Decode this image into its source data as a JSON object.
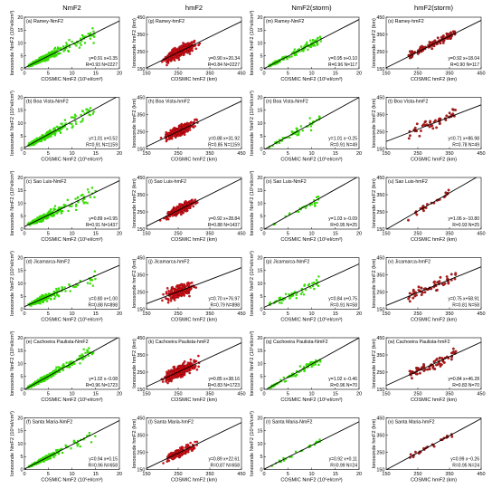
{
  "column_titles": [
    "NmF2",
    "hmF2",
    "NmF2(storm)",
    "hmF2(storm)"
  ],
  "axis_labels": {
    "nm_x": "COSMIC NmF2 (10⁵el/cm³)",
    "nm_y": "Ionosonde NmF2 (10⁵el/cm³)",
    "hm_x": "COSMIC hmF2 (km)",
    "hm_y": "Ionosonde hmF2 (km)"
  },
  "colors": {
    "nm_points": "#33dd00",
    "hm_points": "#e0101a",
    "hm_storm_points": "#b81c1c",
    "fit_line": "#000000"
  },
  "chart_data": [
    {
      "id": "a",
      "type": "scatter",
      "panel_title": "(a) Ramey-NmF2",
      "kind": "nm",
      "storm": false,
      "xlim": [
        0,
        20
      ],
      "ylim": [
        0,
        20
      ],
      "xticks": [
        0,
        5,
        10,
        15,
        20
      ],
      "yticks": [
        0,
        5,
        10,
        15,
        20
      ],
      "fit": {
        "slope": 0.91,
        "intercept": 0.35
      },
      "equation": "y=0.91 x+0.35",
      "stats": "R=0.93 N=2227",
      "n": 2227,
      "r": 0.93
    },
    {
      "id": "g",
      "type": "scatter",
      "panel_title": "(g) Ramey-hmF2",
      "kind": "hm",
      "storm": false,
      "xlim": [
        150,
        450
      ],
      "ylim": [
        150,
        450
      ],
      "xticks": [
        150,
        250,
        350,
        450
      ],
      "yticks": [
        150,
        250,
        350,
        450
      ],
      "fit": {
        "slope": 0.9,
        "intercept": 20.34
      },
      "equation": "y=0.90 x+20.34",
      "stats": "R=0.84 N=2227",
      "n": 2227,
      "r": 0.84
    },
    {
      "id": "m",
      "type": "scatter",
      "panel_title": "(m) Ramey-NmF2",
      "kind": "nm",
      "storm": true,
      "xlim": [
        0,
        20
      ],
      "ylim": [
        0,
        20
      ],
      "xticks": [
        0,
        5,
        10,
        15,
        20
      ],
      "yticks": [
        0,
        5,
        10,
        15,
        20
      ],
      "fit": {
        "slope": 0.95,
        "intercept": 0.1
      },
      "equation": "y=0.95 x+0.10",
      "stats": "R=0.96 N=117",
      "n": 117,
      "r": 0.96
    },
    {
      "id": "s",
      "type": "scatter",
      "panel_title": "(s) Ramey-hmF2",
      "kind": "hm",
      "storm": true,
      "xlim": [
        150,
        450
      ],
      "ylim": [
        150,
        450
      ],
      "xticks": [
        150,
        250,
        350,
        450
      ],
      "yticks": [
        150,
        250,
        350,
        450
      ],
      "fit": {
        "slope": 0.92,
        "intercept": 18.04
      },
      "equation": "y=0.92 x+18.04",
      "stats": "R=0.90 N=117",
      "n": 117,
      "r": 0.9
    },
    {
      "id": "b",
      "type": "scatter",
      "panel_title": "(b) Boa Vista-NmF2",
      "kind": "nm",
      "storm": false,
      "xlim": [
        0,
        20
      ],
      "ylim": [
        0,
        20
      ],
      "xticks": [
        0,
        5,
        10,
        15,
        20
      ],
      "yticks": [
        0,
        5,
        10,
        15,
        20
      ],
      "fit": {
        "slope": 1.01,
        "intercept": 0.52
      },
      "equation": "y=1.01 x+0.52",
      "stats": "R=0.91 N=1159",
      "n": 1159,
      "r": 0.91
    },
    {
      "id": "h",
      "type": "scatter",
      "panel_title": "(h) Boa Vista-hmF2",
      "kind": "hm",
      "storm": false,
      "xlim": [
        150,
        450
      ],
      "ylim": [
        150,
        450
      ],
      "xticks": [
        150,
        250,
        350,
        450
      ],
      "yticks": [
        150,
        250,
        350,
        450
      ],
      "fit": {
        "slope": 0.88,
        "intercept": 31.92
      },
      "equation": "y=0.88 x+31.92",
      "stats": "R=0.85 N=1159",
      "n": 1159,
      "r": 0.85
    },
    {
      "id": "n",
      "type": "scatter",
      "panel_title": "(n) Boa Vista-NmF2",
      "kind": "nm",
      "storm": true,
      "xlim": [
        0,
        20
      ],
      "ylim": [
        0,
        20
      ],
      "xticks": [
        0,
        5,
        10,
        15,
        20
      ],
      "yticks": [
        0,
        5,
        10,
        15,
        20
      ],
      "fit": {
        "slope": 1.01,
        "intercept": -0.25
      },
      "equation": "y=1.01 x−0.25",
      "stats": "R=0.91 N=49",
      "n": 49,
      "r": 0.91
    },
    {
      "id": "t",
      "type": "scatter",
      "panel_title": "(t) Boa Vista-hmF2",
      "kind": "hm",
      "storm": true,
      "xlim": [
        150,
        450
      ],
      "ylim": [
        150,
        450
      ],
      "xticks": [
        150,
        250,
        350,
        450
      ],
      "yticks": [
        150,
        250,
        350,
        450
      ],
      "fit": {
        "slope": 0.71,
        "intercept": 86.98
      },
      "equation": "y=0.71 x+86.98",
      "stats": "R=0.78 N=49",
      "n": 49,
      "r": 0.78
    },
    {
      "id": "c",
      "type": "scatter",
      "panel_title": "(c) Sao Luis-NmF2",
      "kind": "nm",
      "storm": false,
      "xlim": [
        0,
        20
      ],
      "ylim": [
        0,
        20
      ],
      "xticks": [
        0,
        5,
        10,
        15,
        20
      ],
      "yticks": [
        0,
        5,
        10,
        15,
        20
      ],
      "fit": {
        "slope": 0.89,
        "intercept": 0.95
      },
      "equation": "y=0.89 x+0.95",
      "stats": "R=0.91 N=1437",
      "n": 1437,
      "r": 0.91
    },
    {
      "id": "i",
      "type": "scatter",
      "panel_title": "(i) Sao Luis-hmF2",
      "kind": "hm",
      "storm": false,
      "xlim": [
        150,
        450
      ],
      "ylim": [
        150,
        450
      ],
      "xticks": [
        150,
        250,
        350,
        450
      ],
      "yticks": [
        150,
        250,
        350,
        450
      ],
      "fit": {
        "slope": 0.92,
        "intercept": 28.84
      },
      "equation": "y=0.92 x+28.84",
      "stats": "R=0.88 N=1437",
      "n": 1437,
      "r": 0.88
    },
    {
      "id": "o",
      "type": "scatter",
      "panel_title": "(o) Sao Luis-NmF2",
      "kind": "nm",
      "storm": true,
      "xlim": [
        0,
        20
      ],
      "ylim": [
        0,
        20
      ],
      "xticks": [
        0,
        5,
        10,
        15,
        20
      ],
      "yticks": [
        0,
        5,
        10,
        15,
        20
      ],
      "fit": {
        "slope": 1.03,
        "intercept": -0.09
      },
      "equation": "y=1.03 x−0.09",
      "stats": "R=0.95 N=25",
      "n": 25,
      "r": 0.95
    },
    {
      "id": "u",
      "type": "scatter",
      "panel_title": "(u) Sao Luis-hmF2",
      "kind": "hm",
      "storm": true,
      "xlim": [
        150,
        450
      ],
      "ylim": [
        150,
        450
      ],
      "xticks": [
        150,
        250,
        350,
        450
      ],
      "yticks": [
        150,
        250,
        350,
        450
      ],
      "fit": {
        "slope": 1.06,
        "intercept": -10.8
      },
      "equation": "y=1.06 x−10.80",
      "stats": "R=0.93 N=25",
      "n": 25,
      "r": 0.93
    },
    {
      "id": "d",
      "type": "scatter",
      "panel_title": "(d) Jicamarca-NmF2",
      "kind": "nm",
      "storm": false,
      "xlim": [
        0,
        20
      ],
      "ylim": [
        0,
        20
      ],
      "xticks": [
        0,
        5,
        10,
        15,
        20
      ],
      "yticks": [
        0,
        5,
        10,
        15,
        20
      ],
      "fit": {
        "slope": 0.8,
        "intercept": 1.0
      },
      "equation": "y=0.80 x+1.00",
      "stats": "R=0.88 N=898",
      "n": 898,
      "r": 0.88
    },
    {
      "id": "j",
      "type": "scatter",
      "panel_title": "(j) Jicamarca-hmF2",
      "kind": "hm",
      "storm": false,
      "xlim": [
        150,
        450
      ],
      "ylim": [
        150,
        450
      ],
      "xticks": [
        150,
        250,
        350,
        450
      ],
      "yticks": [
        150,
        250,
        350,
        450
      ],
      "fit": {
        "slope": 0.7,
        "intercept": 76.97
      },
      "equation": "y=0.70 x+76.97",
      "stats": "R=0.79 N=898",
      "n": 898,
      "r": 0.79
    },
    {
      "id": "p",
      "type": "scatter",
      "panel_title": "(p) Jicamarca-NmF2",
      "kind": "nm",
      "storm": true,
      "xlim": [
        0,
        20
      ],
      "ylim": [
        0,
        20
      ],
      "xticks": [
        0,
        5,
        10,
        15,
        20
      ],
      "yticks": [
        0,
        5,
        10,
        15,
        20
      ],
      "fit": {
        "slope": 0.84,
        "intercept": 0.75
      },
      "equation": "y=0.84 x+0.75",
      "stats": "R=0.91 N=58",
      "n": 58,
      "r": 0.91
    },
    {
      "id": "v",
      "type": "scatter",
      "panel_title": "(v) Jicamarca-hmF2",
      "kind": "hm",
      "storm": true,
      "xlim": [
        150,
        450
      ],
      "ylim": [
        150,
        450
      ],
      "xticks": [
        150,
        250,
        350,
        450
      ],
      "yticks": [
        150,
        250,
        350,
        450
      ],
      "fit": {
        "slope": 0.75,
        "intercept": 58.91
      },
      "equation": "y=0.75 x+58.91",
      "stats": "R=0.81 N=58",
      "n": 58,
      "r": 0.81
    },
    {
      "id": "e",
      "type": "scatter",
      "panel_title": "(e) Cachoeira Paulista-NmF2",
      "kind": "nm",
      "storm": false,
      "xlim": [
        0,
        20
      ],
      "ylim": [
        0,
        20
      ],
      "xticks": [
        0,
        5,
        10,
        15,
        20
      ],
      "yticks": [
        0,
        5,
        10,
        15,
        20
      ],
      "fit": {
        "slope": 1.02,
        "intercept": -0.08
      },
      "equation": "y=1.02 x−0.08",
      "stats": "R=0.96 N=1723",
      "n": 1723,
      "r": 0.96
    },
    {
      "id": "k",
      "type": "scatter",
      "panel_title": "(k) Cachoeira Paulista-hmF2",
      "kind": "hm",
      "storm": false,
      "xlim": [
        150,
        450
      ],
      "ylim": [
        150,
        450
      ],
      "xticks": [
        150,
        250,
        350,
        450
      ],
      "yticks": [
        150,
        250,
        350,
        450
      ],
      "fit": {
        "slope": 0.85,
        "intercept": 38.16
      },
      "equation": "y=0.85 x+38.16",
      "stats": "R=0.83 N=1723",
      "n": 1723,
      "r": 0.83
    },
    {
      "id": "q",
      "type": "scatter",
      "panel_title": "(q) Cachoeira Paulista-NmF2",
      "kind": "nm",
      "storm": true,
      "xlim": [
        0,
        20
      ],
      "ylim": [
        0,
        20
      ],
      "xticks": [
        0,
        5,
        10,
        15,
        20
      ],
      "yticks": [
        0,
        5,
        10,
        15,
        20
      ],
      "fit": {
        "slope": 1.02,
        "intercept": -0.46
      },
      "equation": "y=1.02 x−0.46",
      "stats": "R=0.96 N=70",
      "n": 70,
      "r": 0.96
    },
    {
      "id": "w",
      "type": "scatter",
      "panel_title": "(w) Cachoeira Paulista-hmF2",
      "kind": "hm",
      "storm": true,
      "xlim": [
        150,
        450
      ],
      "ylim": [
        150,
        450
      ],
      "xticks": [
        150,
        250,
        350,
        450
      ],
      "yticks": [
        150,
        250,
        350,
        450
      ],
      "fit": {
        "slope": 0.84,
        "intercept": 46.28
      },
      "equation": "y=0.84 x+46.28",
      "stats": "R=0.83 N=70",
      "n": 70,
      "r": 0.83
    },
    {
      "id": "f",
      "type": "scatter",
      "panel_title": "(f) Santa Maria-NmF2",
      "kind": "nm",
      "storm": false,
      "xlim": [
        0,
        20
      ],
      "ylim": [
        0,
        20
      ],
      "xticks": [
        0,
        5,
        10,
        15,
        20
      ],
      "yticks": [
        0,
        5,
        10,
        15,
        20
      ],
      "fit": {
        "slope": 0.94,
        "intercept": 0.15
      },
      "equation": "y=0.94 x+0.15",
      "stats": "R=0.96 N=658",
      "n": 658,
      "r": 0.96
    },
    {
      "id": "l",
      "type": "scatter",
      "panel_title": "(l) Santa Maria-hmF2",
      "kind": "hm",
      "storm": false,
      "xlim": [
        150,
        450
      ],
      "ylim": [
        150,
        450
      ],
      "xticks": [
        150,
        250,
        350,
        450
      ],
      "yticks": [
        150,
        250,
        350,
        450
      ],
      "fit": {
        "slope": 0.89,
        "intercept": 22.61
      },
      "equation": "y=0.89 x+22.61",
      "stats": "R=0.87 N=658",
      "n": 658,
      "r": 0.87
    },
    {
      "id": "r",
      "type": "scatter",
      "panel_title": "(r) Santa Maria-NmF2",
      "kind": "nm",
      "storm": true,
      "xlim": [
        0,
        20
      ],
      "ylim": [
        0,
        20
      ],
      "xticks": [
        0,
        5,
        10,
        15,
        20
      ],
      "yticks": [
        0,
        5,
        10,
        15,
        20
      ],
      "fit": {
        "slope": 0.92,
        "intercept": 0.11
      },
      "equation": "y=0.92 x+0.11",
      "stats": "R=0.99 N=24",
      "n": 24,
      "r": 0.99
    },
    {
      "id": "x",
      "type": "scatter",
      "panel_title": "(x) Santa Maria-hmF2",
      "kind": "hm",
      "storm": true,
      "xlim": [
        150,
        450
      ],
      "ylim": [
        150,
        450
      ],
      "xticks": [
        150,
        250,
        350,
        450
      ],
      "yticks": [
        150,
        250,
        350,
        450
      ],
      "fit": {
        "slope": 0.99,
        "intercept": -0.26
      },
      "equation": "y=0.99 x−0.26",
      "stats": "R=0.95 N=24",
      "n": 24,
      "r": 0.95
    }
  ]
}
